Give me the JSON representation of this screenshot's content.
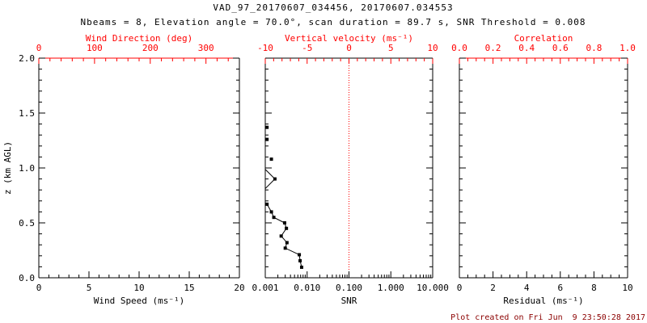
{
  "title": "VAD_97_20170607_034456, 20170607.034553",
  "subtitle": "Nbeams = 8, Elevation angle = 70.0°, scan duration = 89.7 s, SNR Threshold = 0.008",
  "footer": "Plot created on Fri Jun  9 23:50:28 2017",
  "colors": {
    "axis": "#000000",
    "secondary_axis": "#ff0000",
    "footer": "#8b0000",
    "data": "#000000",
    "background": "#ffffff"
  },
  "chart_data": {
    "type": "line",
    "y_axis": {
      "label": "z (km AGL)",
      "range": [
        0,
        2
      ],
      "ticks": [
        {
          "v": 0.0,
          "label": "0.0"
        },
        {
          "v": 0.5,
          "label": "0.5"
        },
        {
          "v": 1.0,
          "label": "1.0"
        },
        {
          "v": 1.5,
          "label": "1.5"
        },
        {
          "v": 2.0,
          "label": "2.0"
        }
      ],
      "minor_step": 0.1
    },
    "panels": [
      {
        "name": "wind-speed",
        "bottom_axis": {
          "label": "Wind Speed (ms⁻¹)",
          "range": [
            0,
            20
          ],
          "ticks": [
            {
              "v": 0,
              "label": "0"
            },
            {
              "v": 5,
              "label": "5"
            },
            {
              "v": 10,
              "label": "10"
            },
            {
              "v": 15,
              "label": "15"
            },
            {
              "v": 20,
              "label": "20"
            }
          ],
          "minor_step": 1,
          "color": "#000000"
        },
        "top_axis": {
          "label": "Wind Direction (deg)",
          "range": [
            0,
            360
          ],
          "ticks": [
            {
              "v": 0,
              "label": "0"
            },
            {
              "v": 100,
              "label": "100"
            },
            {
              "v": 200,
              "label": "200"
            },
            {
              "v": 300,
              "label": "300"
            }
          ],
          "minor_step": 20,
          "color": "#ff0000",
          "line_color": "#ff0000"
        },
        "series": []
      },
      {
        "name": "snr",
        "bottom_axis": {
          "label": "SNR",
          "range": [
            0.001,
            10
          ],
          "scale": "log",
          "ticks": [
            {
              "v": 0.001,
              "label": "0.001"
            },
            {
              "v": 0.01,
              "label": "0.010"
            },
            {
              "v": 0.1,
              "label": "0.100"
            },
            {
              "v": 1,
              "label": "1.000"
            },
            {
              "v": 10,
              "label": "10.000"
            }
          ],
          "color": "#000000"
        },
        "top_axis": {
          "label": "Vertical velocity (ms⁻¹)",
          "range": [
            -10,
            10
          ],
          "ticks": [
            {
              "v": -10,
              "label": "-10"
            },
            {
              "v": -5,
              "label": "-5"
            },
            {
              "v": 0,
              "label": "0"
            },
            {
              "v": 5,
              "label": "5"
            },
            {
              "v": 10,
              "label": "10"
            }
          ],
          "minor_step": 1,
          "color": "#ff0000",
          "line_color": "#000000"
        },
        "ref_line": {
          "value": 0,
          "on": "top",
          "color": "#ff0000",
          "style": "dotted"
        },
        "series": [
          {
            "name": "snr-profile",
            "marker": "square",
            "color": "#000000",
            "points": [
              [
                0.0011,
                1.37
              ],
              [
                0.0011,
                1.26
              ],
              [
                0.0014,
                1.08
              ],
              [
                0.0017,
                0.9
              ],
              [
                0.0011,
                0.67
              ],
              [
                0.0014,
                0.6
              ],
              [
                0.0016,
                0.55
              ],
              [
                0.0029,
                0.5
              ],
              [
                0.0032,
                0.45
              ],
              [
                0.0024,
                0.38
              ],
              [
                0.0033,
                0.32
              ],
              [
                0.003,
                0.27
              ],
              [
                0.0065,
                0.21
              ],
              [
                0.0068,
                0.155
              ],
              [
                0.0074,
                0.096
              ]
            ],
            "connect_from": 4,
            "clip_segments": [
              [
                0.001,
                0.987,
                0.0017,
                0.9
              ],
              [
                0.0017,
                0.9,
                0.001,
                0.812
              ]
            ]
          }
        ]
      },
      {
        "name": "residual",
        "bottom_axis": {
          "label": "Residual (ms⁻¹)",
          "range": [
            0,
            10
          ],
          "ticks": [
            {
              "v": 0,
              "label": "0"
            },
            {
              "v": 2,
              "label": "2"
            },
            {
              "v": 4,
              "label": "4"
            },
            {
              "v": 6,
              "label": "6"
            },
            {
              "v": 8,
              "label": "8"
            },
            {
              "v": 10,
              "label": "10"
            }
          ],
          "minor_step": 0.5,
          "color": "#000000"
        },
        "top_axis": {
          "label": "Correlation",
          "range": [
            0,
            1
          ],
          "ticks": [
            {
              "v": 0.0,
              "label": "0.0"
            },
            {
              "v": 0.2,
              "label": "0.2"
            },
            {
              "v": 0.4,
              "label": "0.4"
            },
            {
              "v": 0.6,
              "label": "0.6"
            },
            {
              "v": 0.8,
              "label": "0.8"
            },
            {
              "v": 1.0,
              "label": "1.0"
            }
          ],
          "minor_step": 0.05,
          "color": "#ff0000",
          "line_color": "#ff0000"
        },
        "series": []
      }
    ]
  }
}
